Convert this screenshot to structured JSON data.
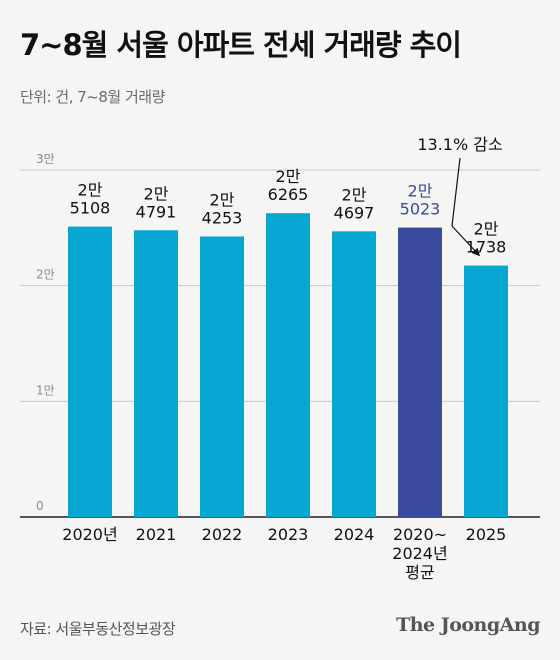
{
  "title": "7~8월 서울 아파트 전세 거래량 추이",
  "unit_note": "단위: 건, 7~8월 거래량",
  "source": "자료: 서울부동산정보광장",
  "brand": "The JoongAng",
  "colors": {
    "bar": "#08a7d3",
    "highlight": "#3a4a9c",
    "grid": "#c9c9c9",
    "axis": "#222222",
    "text": "#111111"
  },
  "chart_data": {
    "type": "bar",
    "categories": [
      {
        "lines": [
          "2020년"
        ]
      },
      {
        "lines": [
          "2021"
        ]
      },
      {
        "lines": [
          "2022"
        ]
      },
      {
        "lines": [
          "2023"
        ]
      },
      {
        "lines": [
          "2024"
        ]
      },
      {
        "lines": [
          "2020~",
          "2024년",
          "평균"
        ]
      },
      {
        "lines": [
          "2025"
        ]
      }
    ],
    "values": [
      25108,
      24791,
      24253,
      26265,
      24697,
      25023,
      21738
    ],
    "value_labels": [
      [
        "2만",
        "5108"
      ],
      [
        "2만",
        "4791"
      ],
      [
        "2만",
        "4253"
      ],
      [
        "2만",
        "6265"
      ],
      [
        "2만",
        "4697"
      ],
      [
        "2만",
        "5023"
      ],
      [
        "2만",
        "1738"
      ]
    ],
    "highlight_index": 5,
    "yticks": [
      {
        "value": 0,
        "label": "0"
      },
      {
        "value": 10000,
        "label": "1만"
      },
      {
        "value": 20000,
        "label": "2만"
      },
      {
        "value": 30000,
        "label": "3만"
      }
    ],
    "ylim": [
      0,
      30000
    ],
    "grid": true,
    "annotation": {
      "text": "13.1% 감소",
      "from_index": 5,
      "to_index": 6
    }
  }
}
